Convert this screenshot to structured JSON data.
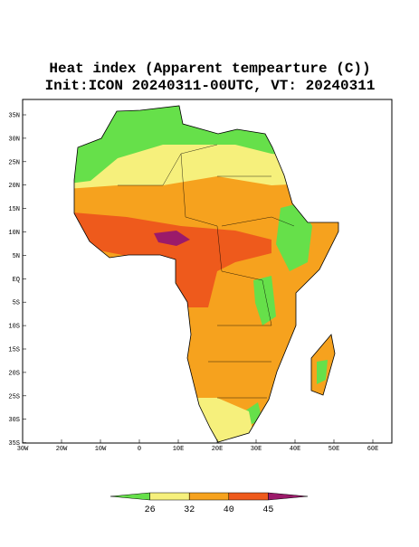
{
  "title": {
    "line1": "Heat index (Apparent tempearture (C))",
    "line2": "Init:ICON 20240311-00UTC, VT: 20240311"
  },
  "lat_labels": [
    "35N",
    "30N",
    "25N",
    "20N",
    "15N",
    "10N",
    "5N",
    "EQ",
    "5S",
    "10S",
    "15S",
    "20S",
    "25S",
    "30S",
    "35S"
  ],
  "lon_labels": [
    "30W",
    "20W",
    "10W",
    0,
    "10E",
    "20E",
    "30E",
    "40E",
    "50E",
    "60E"
  ],
  "colorbar": {
    "levels": [
      26,
      32,
      40,
      45
    ],
    "colors": [
      "#66e04a",
      "#f6f07c",
      "#f6a21e",
      "#ee5a1c",
      "#9b1a6a"
    ]
  }
}
